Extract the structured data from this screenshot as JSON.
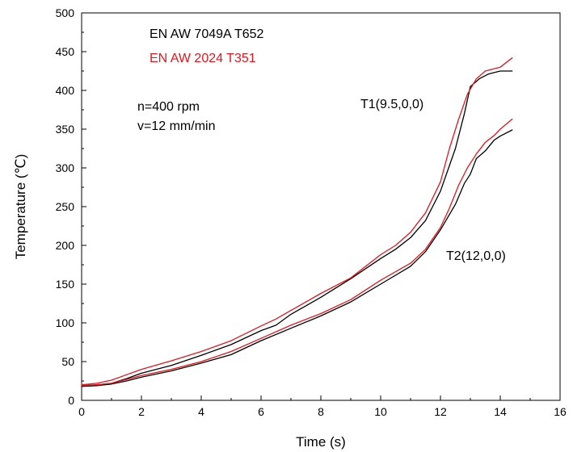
{
  "chart_data": {
    "type": "line",
    "xlabel": "Time (s)",
    "ylabel": "Temperature (℃)",
    "xlim": [
      0,
      16
    ],
    "ylim": [
      0,
      500
    ],
    "xticks": [
      0,
      2,
      4,
      6,
      8,
      10,
      12,
      14,
      16
    ],
    "yticks": [
      0,
      50,
      100,
      150,
      200,
      250,
      300,
      350,
      400,
      450,
      500
    ],
    "grid": false,
    "legend_position": "top-left",
    "legend": [
      {
        "label": "EN AW 7049A T652",
        "color": "#000000"
      },
      {
        "label": "EN AW 2024 T351",
        "color": "#e8141c"
      }
    ],
    "annotations": [
      {
        "text": "n=400 rpm",
        "x": 1.9,
        "y": 375
      },
      {
        "text": "v=12 mm/min",
        "x": 1.9,
        "y": 350
      },
      {
        "text": "T1(9.5,0,0)",
        "x": 9.3,
        "y": 379
      },
      {
        "text": "T2(12,0,0)",
        "x": 11.9,
        "y": 190
      }
    ],
    "series": [
      {
        "material": "EN AW 7049A T652",
        "probe": "T1(9.5,0,0)",
        "color": "#000000",
        "x": [
          0,
          0.5,
          1,
          1.5,
          2,
          3,
          4,
          5,
          6,
          6.5,
          7,
          7.5,
          8,
          9,
          10,
          10.5,
          11,
          11.5,
          12,
          12.5,
          12.8,
          13,
          13.3,
          13.6,
          14,
          14.4
        ],
        "y": [
          19,
          20,
          22,
          28,
          35,
          45,
          58,
          72,
          90,
          97,
          111,
          122,
          133,
          157,
          183,
          195,
          210,
          232,
          270,
          325,
          370,
          405,
          415,
          421,
          425,
          425
        ]
      },
      {
        "material": "EN AW 2024 T351",
        "probe": "T1(9.5,0,0)",
        "color": "#e8141c",
        "x": [
          0,
          0.5,
          1,
          1.5,
          2,
          3,
          4,
          5,
          6,
          6.5,
          7,
          7.5,
          8,
          9,
          10,
          10.5,
          11,
          11.5,
          12,
          12.3,
          12.6,
          12.9,
          13.2,
          13.5,
          14,
          14.4
        ],
        "y": [
          20,
          22,
          26,
          33,
          40,
          51,
          63,
          77,
          96,
          105,
          116,
          127,
          138,
          158,
          188,
          200,
          217,
          242,
          282,
          325,
          362,
          395,
          415,
          425,
          430,
          442
        ]
      },
      {
        "material": "EN AW 7049A T652",
        "probe": "T2(12,0,0)",
        "color": "#000000",
        "x": [
          0,
          0.5,
          1,
          1.5,
          2,
          3,
          4,
          5,
          6,
          7,
          8,
          9,
          10,
          11,
          11.5,
          12,
          12.5,
          12.8,
          13,
          13.2,
          13.5,
          13.8,
          14,
          14.4
        ],
        "y": [
          18,
          19,
          21,
          25,
          30,
          38,
          48,
          59,
          77,
          93,
          109,
          127,
          150,
          173,
          192,
          220,
          253,
          280,
          292,
          312,
          322,
          336,
          341,
          349
        ]
      },
      {
        "material": "EN AW 2024 T351",
        "probe": "T2(12,0,0)",
        "color": "#e8141c",
        "x": [
          0,
          0.5,
          1,
          1.5,
          2,
          3,
          4,
          5,
          6,
          7,
          8,
          9,
          10,
          11,
          11.5,
          12,
          12.3,
          12.6,
          12.9,
          13.2,
          13.5,
          13.8,
          14,
          14.4
        ],
        "y": [
          19,
          20,
          22,
          27,
          32,
          40,
          50,
          63,
          80,
          97,
          112,
          130,
          155,
          177,
          195,
          223,
          248,
          277,
          300,
          318,
          333,
          342,
          350,
          363
        ]
      }
    ]
  }
}
